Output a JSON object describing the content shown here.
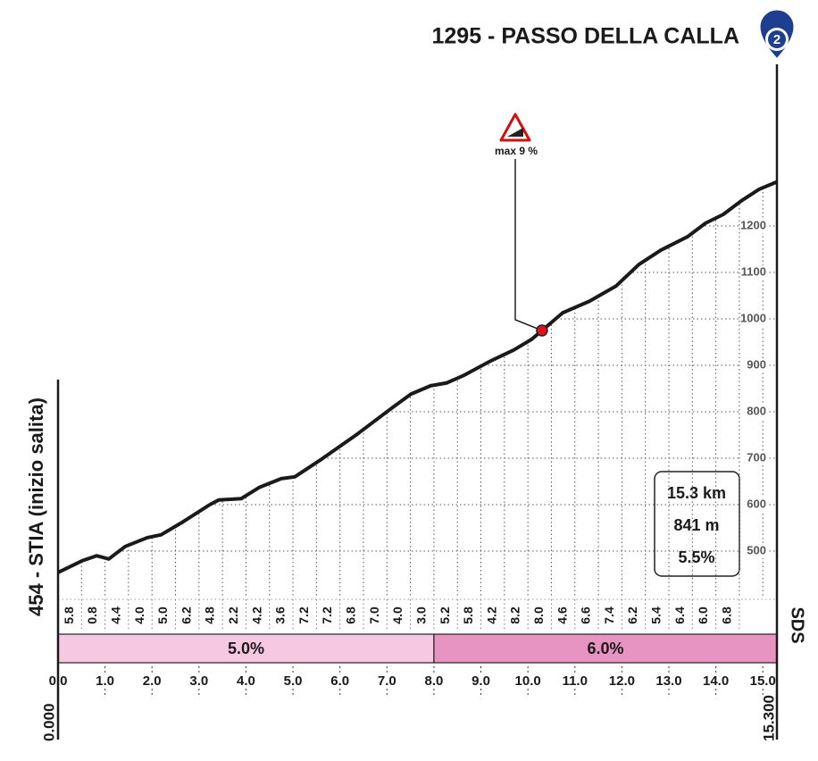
{
  "header": {
    "title": "1295 - PASSO DELLA CALLA",
    "badge": "2"
  },
  "chart_data": {
    "type": "line",
    "start_label": "454 - STIA (inizio salita)",
    "start_km": "0.000",
    "end_km": "15.300",
    "x": [
      0,
      0.51,
      0.82,
      1.08,
      1.43,
      1.9,
      2.19,
      2.66,
      3.23,
      3.42,
      3.9,
      4.28,
      4.75,
      5.04,
      5.61,
      6.37,
      7.13,
      7.51,
      7.93,
      8.27,
      8.65,
      9.22,
      9.7,
      10.08,
      10.3,
      10.74,
      11.31,
      11.88,
      12.36,
      12.83,
      13.4,
      13.78,
      14.16,
      14.54,
      14.92,
      15.3
    ],
    "values": [
      454,
      479,
      490,
      483,
      510,
      529,
      535,
      563,
      600,
      610,
      613,
      637,
      656,
      660,
      698,
      752,
      810,
      838,
      856,
      862,
      879,
      910,
      933,
      956,
      975,
      1013,
      1038,
      1071,
      1117,
      1148,
      1177,
      1206,
      1225,
      1254,
      1279,
      1295
    ],
    "xlim": [
      0,
      15.3
    ],
    "ylim": [
      400,
      1550
    ],
    "yticks": [
      500,
      600,
      700,
      800,
      900,
      1000,
      1100,
      1200
    ],
    "xticks": [
      {
        "value": 0,
        "label": "0.0"
      },
      {
        "value": 1,
        "label": "1.0"
      },
      {
        "value": 2,
        "label": "2.0"
      },
      {
        "value": 3,
        "label": "3.0"
      },
      {
        "value": 4,
        "label": "4.0"
      },
      {
        "value": 5,
        "label": "5.0"
      },
      {
        "value": 6,
        "label": "6.0"
      },
      {
        "value": 7,
        "label": "7.0"
      },
      {
        "value": 8,
        "label": "8.0"
      },
      {
        "value": 9,
        "label": "9.0"
      },
      {
        "value": 10,
        "label": "10.0"
      },
      {
        "value": 11,
        "label": "11.0"
      },
      {
        "value": 12,
        "label": "12.0"
      },
      {
        "value": 13,
        "label": "13.0"
      },
      {
        "value": 14,
        "label": "14.0"
      },
      {
        "value": 15,
        "label": "15.0"
      }
    ],
    "gradient_labels": [
      "5.8",
      "0.8",
      "4.4",
      "4.0",
      "5.0",
      "6.2",
      "4.8",
      "2.2",
      "4.2",
      "3.6",
      "7.2",
      "7.2",
      "6.8",
      "7.0",
      "4.0",
      "3.0",
      "5.2",
      "5.8",
      "4.2",
      "8.2",
      "8.0",
      "4.6",
      "6.6",
      "7.4",
      "6.2",
      "5.4",
      "6.4",
      "6.0",
      "6.8"
    ],
    "sections": [
      {
        "label": "5.0%",
        "from": 0,
        "to": 8,
        "color": "#f6c9e0"
      },
      {
        "label": "6.0%",
        "from": 8,
        "to": 15.3,
        "color": "#e894c2"
      }
    ],
    "max_marker": {
      "label": "max 9 %",
      "x": 10.3
    },
    "summary": [
      "15.3 km",
      "841 m",
      "5.5%"
    ],
    "logo": "SDS"
  }
}
